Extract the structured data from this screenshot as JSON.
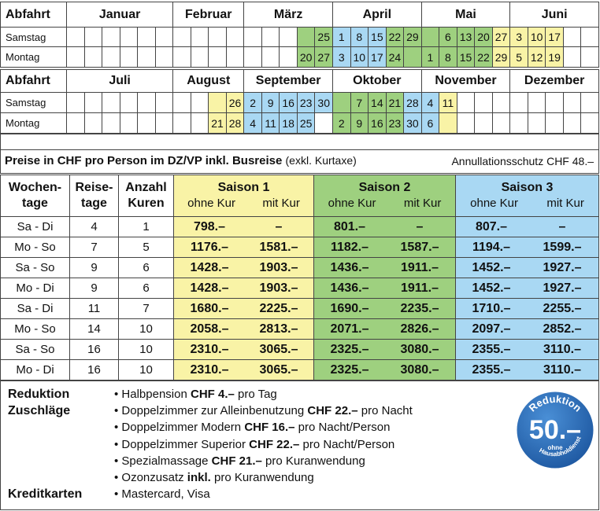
{
  "calendar": [
    {
      "header": [
        "Abfahrt",
        "Januar",
        "Februar",
        "März",
        "April",
        "Mai",
        "Juni"
      ],
      "rows": [
        {
          "label": "Samstag",
          "cells": [
            null,
            null,
            null,
            null,
            null,
            null,
            null,
            null,
            null,
            null,
            null,
            null,
            null,
            {
              "season": 2
            },
            {
              "day": "25",
              "season": 2
            },
            {
              "day": "1",
              "season": 3
            },
            {
              "day": "8",
              "season": 3
            },
            {
              "day": "15",
              "season": 3
            },
            {
              "day": "22",
              "season": 2
            },
            {
              "day": "29",
              "season": 2
            },
            {
              "season": 2
            },
            {
              "day": "6",
              "season": 2
            },
            {
              "day": "13",
              "season": 2
            },
            {
              "day": "20",
              "season": 2
            },
            {
              "day": "27",
              "season": 1
            },
            {
              "day": "3",
              "season": 1
            },
            {
              "day": "10",
              "season": 1
            },
            {
              "day": "17",
              "season": 1
            },
            null,
            null
          ]
        },
        {
          "label": "Montag",
          "cells": [
            null,
            null,
            null,
            null,
            null,
            null,
            null,
            null,
            null,
            null,
            null,
            null,
            null,
            {
              "day": "20",
              "season": 2
            },
            {
              "day": "27",
              "season": 2
            },
            {
              "day": "3",
              "season": 3
            },
            {
              "day": "10",
              "season": 3
            },
            {
              "day": "17",
              "season": 3
            },
            {
              "day": "24",
              "season": 2
            },
            {
              "season": 2
            },
            {
              "day": "1",
              "season": 2
            },
            {
              "day": "8",
              "season": 2
            },
            {
              "day": "15",
              "season": 2
            },
            {
              "day": "22",
              "season": 2
            },
            {
              "day": "29",
              "season": 1
            },
            {
              "day": "5",
              "season": 1
            },
            {
              "day": "12",
              "season": 1
            },
            {
              "day": "19",
              "season": 1
            },
            null,
            null
          ]
        }
      ]
    },
    {
      "header": [
        "Abfahrt",
        "Juli",
        "August",
        "September",
        "Oktober",
        "November",
        "Dezember"
      ],
      "rows": [
        {
          "label": "Samstag",
          "cells": [
            null,
            null,
            null,
            null,
            null,
            null,
            null,
            null,
            {
              "season": 1
            },
            {
              "day": "26",
              "season": 1
            },
            {
              "day": "2",
              "season": 3
            },
            {
              "day": "9",
              "season": 3
            },
            {
              "day": "16",
              "season": 3
            },
            {
              "day": "23",
              "season": 3
            },
            {
              "day": "30",
              "season": 3
            },
            {
              "season": 2
            },
            {
              "day": "7",
              "season": 2
            },
            {
              "day": "14",
              "season": 2
            },
            {
              "day": "21",
              "season": 2
            },
            {
              "day": "28",
              "season": 3
            },
            {
              "day": "4",
              "season": 3
            },
            {
              "day": "11",
              "season": 1
            },
            null,
            null,
            null,
            null,
            null,
            null,
            null,
            null
          ]
        },
        {
          "label": "Montag",
          "cells": [
            null,
            null,
            null,
            null,
            null,
            null,
            null,
            null,
            {
              "day": "21",
              "season": 1
            },
            {
              "day": "28",
              "season": 1
            },
            {
              "day": "4",
              "season": 3
            },
            {
              "day": "11",
              "season": 3
            },
            {
              "day": "18",
              "season": 3
            },
            {
              "day": "25",
              "season": 3
            },
            null,
            {
              "day": "2",
              "season": 2
            },
            {
              "day": "9",
              "season": 2
            },
            {
              "day": "16",
              "season": 2
            },
            {
              "day": "23",
              "season": 2
            },
            {
              "day": "30",
              "season": 3
            },
            {
              "day": "6",
              "season": 3
            },
            {
              "season": 1
            },
            null,
            null,
            null,
            null,
            null,
            null,
            null,
            null
          ]
        }
      ]
    }
  ],
  "season_colors": {
    "1": "#f9f3a6",
    "2": "#9ed07f",
    "3": "#a9d8f3"
  },
  "prices": {
    "title": "Preise in CHF pro Person im DZ/VP inkl. Busreise",
    "title_note": "(exkl. Kurtaxe)",
    "insurance": "Annullationsschutz CHF 48.–",
    "headers": [
      [
        "Wochen-",
        "tage"
      ],
      [
        "Reise-",
        "tage"
      ],
      [
        "Anzahl",
        "Kuren"
      ]
    ],
    "seasons": [
      {
        "name": "Saison 1",
        "sub": [
          "ohne Kur",
          "mit Kur"
        ]
      },
      {
        "name": "Saison 2",
        "sub": [
          "ohne Kur",
          "mit Kur"
        ]
      },
      {
        "name": "Saison 3",
        "sub": [
          "ohne Kur",
          "mit Kur"
        ]
      }
    ],
    "rows": [
      [
        "Sa - Di",
        "4",
        "1",
        "798.–",
        "–",
        "801.–",
        "–",
        "807.–",
        "–"
      ],
      [
        "Mo - So",
        "7",
        "5",
        "1176.–",
        "1581.–",
        "1182.–",
        "1587.–",
        "1194.–",
        "1599.–"
      ],
      [
        "Sa - So",
        "9",
        "6",
        "1428.–",
        "1903.–",
        "1436.–",
        "1911.–",
        "1452.–",
        "1927.–"
      ],
      [
        "Mo - Di",
        "9",
        "6",
        "1428.–",
        "1903.–",
        "1436.–",
        "1911.–",
        "1452.–",
        "1927.–"
      ],
      [
        "Sa - Di",
        "11",
        "7",
        "1680.–",
        "2225.–",
        "1690.–",
        "2235.–",
        "1710.–",
        "2255.–"
      ],
      [
        "Mo - So",
        "14",
        "10",
        "2058.–",
        "2813.–",
        "2071.–",
        "2826.–",
        "2097.–",
        "2852.–"
      ],
      [
        "Sa - So",
        "16",
        "10",
        "2310.–",
        "3065.–",
        "2325.–",
        "3080.–",
        "2355.–",
        "3110.–"
      ],
      [
        "Mo - Di",
        "16",
        "10",
        "2310.–",
        "3065.–",
        "2325.–",
        "3080.–",
        "2355.–",
        "3110.–"
      ]
    ]
  },
  "footer": {
    "labels": [
      "Reduktion",
      "Zuschläge",
      "Kreditkarten"
    ],
    "items": [
      [
        "Halbpension ",
        "CHF 4.–",
        " pro Tag"
      ],
      [
        "Doppelzimmer zur Alleinbenutzung ",
        "CHF 22.–",
        " pro Nacht"
      ],
      [
        "Doppelzimmer Modern ",
        "CHF 16.–",
        " pro Nacht/Person"
      ],
      [
        "Doppelzimmer Superior ",
        "CHF 22.–",
        " pro Nacht/Person"
      ],
      [
        "Spezialmassage ",
        "CHF 21.–",
        " pro Kuranwendung"
      ],
      [
        "Ozonzusatz ",
        "inkl.",
        " pro Kuranwendung"
      ]
    ],
    "cards": "Mastercard, Visa"
  },
  "badge": {
    "title": "Reduktion",
    "amount": "50.–",
    "note": [
      "ohne",
      "Hausabholdienst"
    ]
  }
}
